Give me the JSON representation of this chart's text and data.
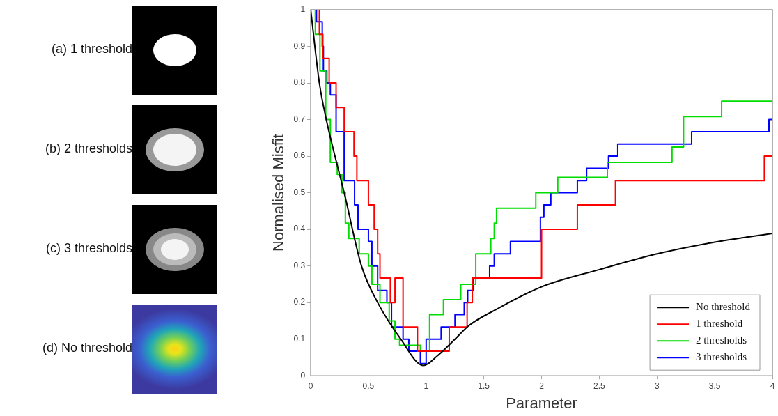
{
  "chart_data": {
    "type": "step",
    "xlabel": "Parameter",
    "ylabel": "Normalised Misfit",
    "xlim": [
      0,
      4
    ],
    "ylim": [
      0,
      1
    ],
    "xticks": [
      0,
      0.5,
      1,
      1.5,
      2,
      2.5,
      3,
      3.5,
      4
    ],
    "yticks": [
      0,
      0.1,
      0.2,
      0.3,
      0.4,
      0.5,
      0.6,
      0.7,
      0.8,
      0.9,
      1
    ],
    "grid": false,
    "legend": "bottom right",
    "annotations": [
      "(a) 1 threshold",
      "(b) 2 thresholds",
      "(c) 3 thresholds",
      "(d) No threshold"
    ],
    "series": [
      {
        "name": "No threshold",
        "type": "line",
        "color": "#000000",
        "x": [
          0,
          0.075,
          0.135,
          0.21,
          0.29,
          0.44,
          0.58,
          0.78,
          0.975,
          1.1,
          1.25,
          1.37,
          1.6,
          2,
          2.5,
          3,
          3.5,
          4
        ],
        "values": [
          1,
          0.8,
          0.7,
          0.6,
          0.5,
          0.3,
          0.2,
          0.1,
          0.028,
          0.055,
          0.1,
          0.137,
          0.18,
          0.243,
          0.29,
          0.333,
          0.365,
          0.389
        ]
      },
      {
        "name": "1 threshold",
        "type": "step",
        "color": "#ff0000",
        "x": [
          0,
          0.075,
          0.105,
          0.16,
          0.22,
          0.29,
          0.375,
          0.4,
          0.5,
          0.55,
          0.58,
          0.6,
          0.69,
          0.73,
          0.8,
          0.925,
          1.2,
          1.355,
          1.4,
          2.0,
          2.31,
          2.64,
          3.93,
          4
        ],
        "values": [
          1,
          0.933,
          0.867,
          0.8,
          0.733,
          0.667,
          0.6,
          0.533,
          0.467,
          0.4,
          0.333,
          0.267,
          0.2,
          0.267,
          0.133,
          0.067,
          0.133,
          0.2,
          0.267,
          0.4,
          0.467,
          0.533,
          0.6,
          0.6
        ]
      },
      {
        "name": "2 thresholds",
        "type": "step",
        "color": "#00dd00",
        "x": [
          0,
          0.04,
          0.08,
          0.13,
          0.17,
          0.23,
          0.27,
          0.3,
          0.33,
          0.42,
          0.5,
          0.53,
          0.6,
          0.68,
          0.73,
          0.77,
          0.95,
          1.03,
          1.15,
          1.3,
          1.43,
          1.56,
          1.59,
          1.61,
          1.95,
          2.14,
          2.57,
          3.13,
          3.23,
          3.56,
          4
        ],
        "values": [
          1,
          0.933,
          0.833,
          0.7,
          0.583,
          0.55,
          0.5,
          0.417,
          0.375,
          0.333,
          0.3,
          0.25,
          0.2,
          0.15,
          0.1,
          0.083,
          0.067,
          0.167,
          0.208,
          0.25,
          0.333,
          0.375,
          0.417,
          0.458,
          0.5,
          0.542,
          0.583,
          0.625,
          0.708,
          0.75,
          0.75
        ]
      },
      {
        "name": "3 thresholds",
        "type": "step",
        "color": "#0000ff",
        "x": [
          0,
          0.05,
          0.1,
          0.11,
          0.14,
          0.17,
          0.22,
          0.29,
          0.38,
          0.41,
          0.5,
          0.53,
          0.58,
          0.66,
          0.7,
          0.8,
          0.85,
          0.95,
          1.0,
          1.13,
          1.25,
          1.33,
          1.36,
          1.41,
          1.55,
          1.59,
          1.73,
          1.99,
          2.02,
          2.08,
          2.31,
          2.39,
          2.58,
          2.66,
          3.3,
          3.97,
          4
        ],
        "values": [
          1,
          0.967,
          0.9,
          0.833,
          0.8,
          0.767,
          0.667,
          0.533,
          0.467,
          0.4,
          0.367,
          0.3,
          0.233,
          0.2,
          0.133,
          0.1,
          0.067,
          0.033,
          0.1,
          0.133,
          0.167,
          0.2,
          0.233,
          0.267,
          0.3,
          0.333,
          0.367,
          0.433,
          0.467,
          0.5,
          0.533,
          0.567,
          0.6,
          0.633,
          0.667,
          0.7,
          0.7
        ]
      }
    ]
  }
}
